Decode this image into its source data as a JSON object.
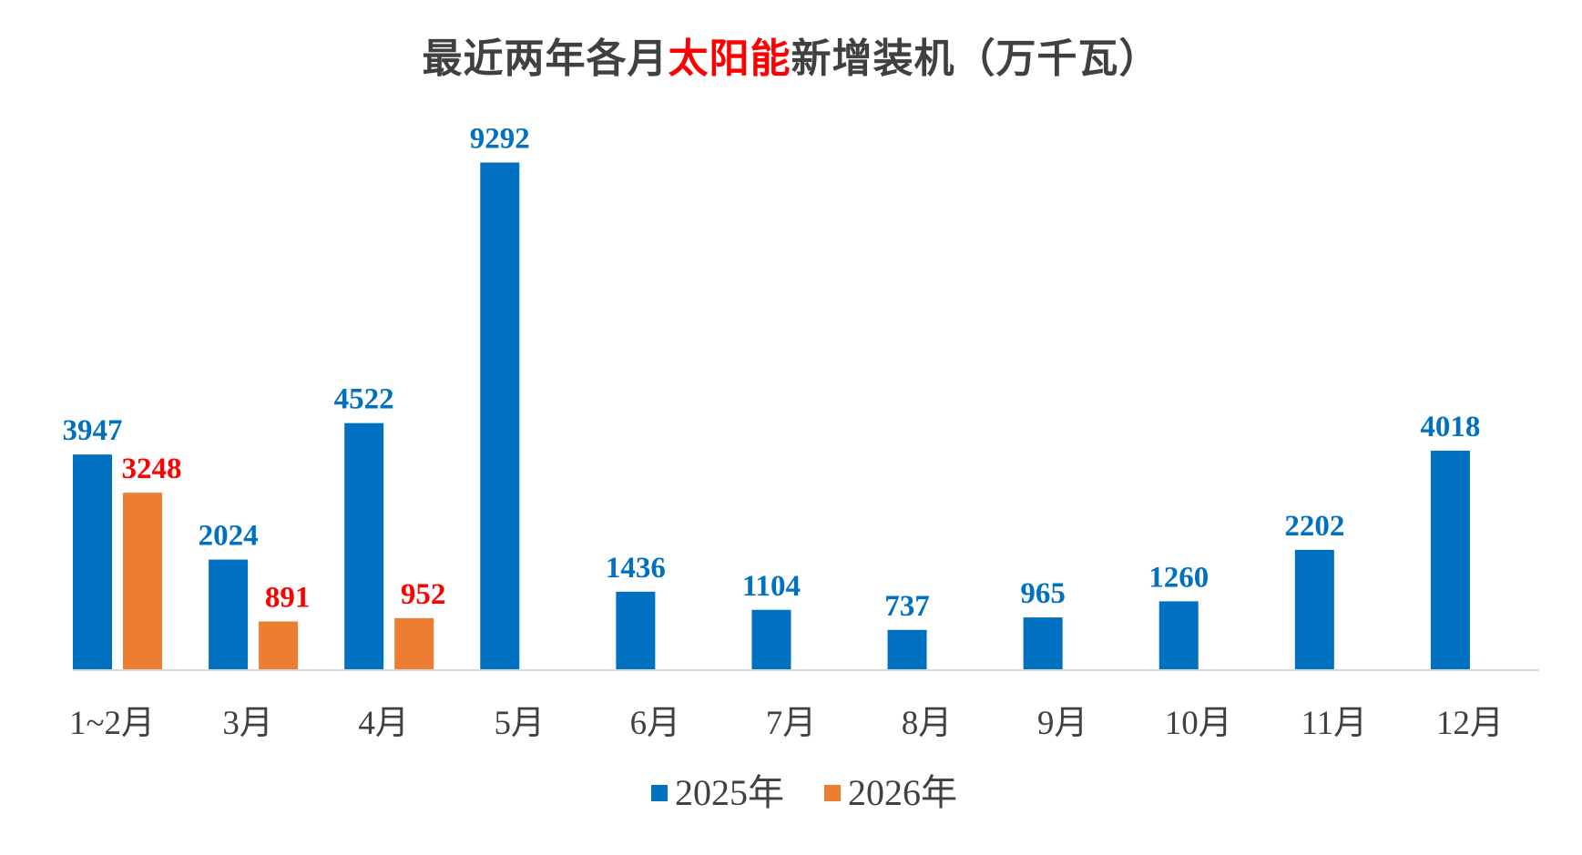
{
  "chart_data": {
    "type": "bar",
    "title_prefix": "最近两年各月",
    "title_highlight": "太阳能",
    "title_suffix": "新增装机（万千瓦）",
    "categories": [
      "1~2月",
      "3月",
      "4月",
      "5月",
      "6月",
      "7月",
      "8月",
      "9月",
      "10月",
      "11月",
      "12月"
    ],
    "series": [
      {
        "name": "2025年",
        "color": "#0070c0",
        "label_color": "#0070c0",
        "values": [
          3947,
          2024,
          4522,
          9292,
          1436,
          1104,
          737,
          965,
          1260,
          2202,
          4018
        ]
      },
      {
        "name": "2026年",
        "color": "#ed7d31",
        "label_color": "#ff0000",
        "values": [
          3248,
          891,
          952,
          null,
          null,
          null,
          null,
          null,
          null,
          null,
          null
        ]
      }
    ],
    "ylim": [
      0,
      10000
    ],
    "grid": false,
    "legend_position": "bottom",
    "xlabel": "",
    "ylabel": ""
  }
}
